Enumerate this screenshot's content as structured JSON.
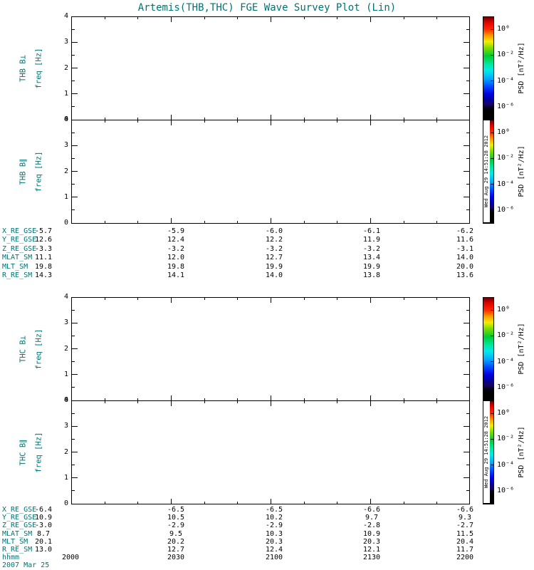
{
  "title": "Artemis(THB,THC) FGE Wave Survey Plot (Lin)",
  "footer": {
    "date": "2007 Mar 25"
  },
  "watermark": "Wed Aug 29 14:51:28 2012",
  "colors": {
    "background": "#ffffff",
    "annotation_teal": "#007474",
    "axis_black": "#000000",
    "colorbar_stops": [
      "#6e0000",
      "#e00000",
      "#ff2a00",
      "#ff9900",
      "#f2ee00",
      "#7ddd00",
      "#00cc33",
      "#00e8a0",
      "#00eaea",
      "#00aaff",
      "#0044ff",
      "#0000dd",
      "#000099",
      "#1a0066",
      "#000000",
      "#000000"
    ]
  },
  "chart_data": [
    {
      "type": "heatmap",
      "id": "thb-bperp",
      "panel_label": "THB B⊥",
      "ylabel": "freq [Hz]",
      "ylim": [
        0,
        4
      ],
      "yticks": [
        0,
        1,
        2,
        3,
        4
      ],
      "x_ticks_hhmm": [
        "2000",
        "2030",
        "2100",
        "2130",
        "2200"
      ],
      "series": [],
      "colorbar": {
        "label": "PSD [nT²/Hz]",
        "tick_labels": [
          "10⁰",
          "10⁻²",
          "10⁻⁴",
          "10⁻⁶"
        ],
        "tick_positions_pct": [
          12.5,
          37.5,
          62.5,
          87.5
        ]
      },
      "show_watermark": false
    },
    {
      "type": "heatmap",
      "id": "thb-bpar",
      "panel_label": "THB B∥",
      "ylabel": "freq [Hz]",
      "ylim": [
        0,
        4
      ],
      "yticks": [
        0,
        1,
        2,
        3,
        4
      ],
      "x_ticks_hhmm": [
        "2000",
        "2030",
        "2100",
        "2130",
        "2200"
      ],
      "series": [],
      "colorbar": {
        "label": "PSD [nT²/Hz]",
        "tick_labels": [
          "10⁰",
          "10⁻²",
          "10⁻⁴",
          "10⁻⁶"
        ],
        "tick_positions_pct": [
          12.5,
          37.5,
          62.5,
          87.5
        ]
      },
      "show_watermark": true
    },
    {
      "type": "heatmap",
      "id": "thc-bperp",
      "panel_label": "THC B⊥",
      "ylabel": "freq [Hz]",
      "ylim": [
        0,
        4
      ],
      "yticks": [
        0,
        1,
        2,
        3,
        4
      ],
      "x_ticks_hhmm": [
        "2000",
        "2030",
        "2100",
        "2130",
        "2200"
      ],
      "series": [],
      "colorbar": {
        "label": "PSD [nT²/Hz]",
        "tick_labels": [
          "10⁰",
          "10⁻²",
          "10⁻⁴",
          "10⁻⁶"
        ],
        "tick_positions_pct": [
          12.5,
          37.5,
          62.5,
          87.5
        ]
      },
      "show_watermark": false
    },
    {
      "type": "heatmap",
      "id": "thc-bpar",
      "panel_label": "THC B∥",
      "ylabel": "freq [Hz]",
      "ylim": [
        0,
        4
      ],
      "yticks": [
        0,
        1,
        2,
        3,
        4
      ],
      "x_ticks_hhmm": [
        "2000",
        "2030",
        "2100",
        "2130",
        "2200"
      ],
      "series": [],
      "colorbar": {
        "label": "PSD [nT²/Hz]",
        "tick_labels": [
          "10⁰",
          "10⁻²",
          "10⁻⁴",
          "10⁻⁶"
        ],
        "tick_positions_pct": [
          12.5,
          37.5,
          62.5,
          87.5
        ]
      },
      "show_watermark": true
    }
  ],
  "ephemeris_top": [
    {
      "label": "X_RE_GSE",
      "values": [
        "-5.7",
        "-5.9",
        "-6.0",
        "-6.1",
        "-6.2"
      ]
    },
    {
      "label": "Y_RE_GSE",
      "values": [
        "12.6",
        "12.4",
        "12.2",
        "11.9",
        "11.6"
      ]
    },
    {
      "label": "Z_RE_GSE",
      "values": [
        "-3.3",
        "-3.2",
        "-3.2",
        "-3.2",
        "-3.1"
      ]
    },
    {
      "label": "MLAT_SM",
      "values": [
        "11.1",
        "12.0",
        "12.7",
        "13.4",
        "14.0"
      ]
    },
    {
      "label": "MLT_SM",
      "values": [
        "19.8",
        "19.8",
        "19.9",
        "19.9",
        "20.0"
      ]
    },
    {
      "label": "R_RE_SM",
      "values": [
        "14.3",
        "14.1",
        "14.0",
        "13.8",
        "13.6"
      ]
    }
  ],
  "ephemeris_bottom": [
    {
      "label": "X_RE_GSE",
      "values": [
        "-6.4",
        "-6.5",
        "-6.5",
        "-6.6",
        "-6.6"
      ]
    },
    {
      "label": "Y_RE_GSE",
      "values": [
        "10.9",
        "10.5",
        "10.2",
        "9.7",
        "9.3"
      ]
    },
    {
      "label": "Z_RE_GSE",
      "values": [
        "-3.0",
        "-2.9",
        "-2.9",
        "-2.8",
        "-2.7"
      ]
    },
    {
      "label": "MLAT_SM",
      "values": [
        "8.7",
        "9.5",
        "10.3",
        "10.9",
        "11.5"
      ]
    },
    {
      "label": "MLT_SM",
      "values": [
        "20.1",
        "20.2",
        "20.3",
        "20.3",
        "20.4"
      ]
    },
    {
      "label": "R_RE_SM",
      "values": [
        "13.0",
        "12.7",
        "12.4",
        "12.1",
        "11.7"
      ]
    },
    {
      "label": "hhmm",
      "values": [
        "2000",
        "2030",
        "2100",
        "2130",
        "2200"
      ]
    }
  ]
}
